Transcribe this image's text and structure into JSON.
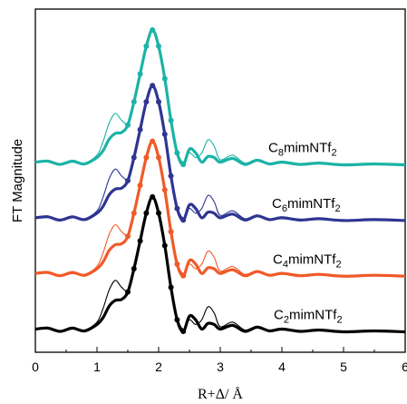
{
  "chart_data": {
    "type": "line",
    "xlabel": "R+Δ/ Å",
    "ylabel": "FT Magnitude",
    "xlim": [
      0,
      6
    ],
    "x_ticks": [
      "0",
      "1",
      "2",
      "3",
      "4",
      "5",
      "6"
    ],
    "y_ticks_labeled": false,
    "grid": false,
    "legend": "none",
    "curve_style": "experimental: thick dotted line; fit: thin solid line, same color",
    "series": [
      {
        "name": "C8mimNTf2",
        "label": {
          "c": "C",
          "n1": "8",
          "mid": "mimNTf",
          "n2": "2"
        },
        "color": "#1bb3a6",
        "offset": 3.6,
        "x": [
          0,
          0.2,
          0.4,
          0.6,
          0.8,
          1.0,
          1.1,
          1.2,
          1.3,
          1.4,
          1.5,
          1.6,
          1.7,
          1.8,
          1.9,
          2.0,
          2.1,
          2.2,
          2.3,
          2.4,
          2.5,
          2.6,
          2.7,
          2.8,
          2.9,
          3.0,
          3.2,
          3.4,
          3.6,
          3.8,
          4.0,
          4.3,
          4.6,
          5.0,
          5.5,
          6.0
        ],
        "y": [
          0.1,
          0.12,
          0.05,
          0.12,
          0.06,
          0.2,
          0.35,
          0.6,
          0.72,
          0.74,
          0.9,
          1.4,
          2.0,
          2.6,
          2.95,
          2.6,
          1.9,
          1.0,
          0.3,
          0.05,
          0.38,
          0.3,
          0.1,
          0.22,
          0.2,
          0.1,
          0.18,
          0.05,
          0.14,
          0.06,
          0.1,
          0.05,
          0.08,
          0.04,
          0.06,
          0.04
        ]
      },
      {
        "name": "C6mimNTf2",
        "label": {
          "c": "C",
          "n1": "6",
          "mid": "mimNTf",
          "n2": "2"
        },
        "color": "#2e3591",
        "offset": 2.4,
        "x": [
          0,
          0.2,
          0.4,
          0.6,
          0.8,
          1.0,
          1.1,
          1.2,
          1.3,
          1.4,
          1.5,
          1.6,
          1.7,
          1.8,
          1.9,
          2.0,
          2.1,
          2.2,
          2.3,
          2.4,
          2.5,
          2.6,
          2.7,
          2.8,
          2.9,
          3.0,
          3.2,
          3.4,
          3.6,
          3.8,
          4.0,
          4.3,
          4.6,
          5.0,
          5.5,
          6.0
        ],
        "y": [
          0.1,
          0.12,
          0.05,
          0.12,
          0.06,
          0.2,
          0.35,
          0.6,
          0.72,
          0.74,
          0.9,
          1.4,
          2.0,
          2.6,
          2.95,
          2.6,
          1.9,
          1.0,
          0.3,
          0.05,
          0.38,
          0.3,
          0.1,
          0.22,
          0.2,
          0.1,
          0.18,
          0.05,
          0.14,
          0.06,
          0.1,
          0.05,
          0.08,
          0.04,
          0.06,
          0.04
        ]
      },
      {
        "name": "C4mimNTf2",
        "label": {
          "c": "C",
          "n1": "4",
          "mid": "mimNTf",
          "n2": "2"
        },
        "color": "#f05a28",
        "offset": 1.2,
        "x": [
          0,
          0.2,
          0.4,
          0.6,
          0.8,
          1.0,
          1.1,
          1.2,
          1.3,
          1.4,
          1.5,
          1.6,
          1.7,
          1.8,
          1.9,
          2.0,
          2.1,
          2.2,
          2.3,
          2.4,
          2.5,
          2.6,
          2.7,
          2.8,
          2.9,
          3.0,
          3.2,
          3.4,
          3.6,
          3.8,
          4.0,
          4.3,
          4.6,
          5.0,
          5.5,
          6.0
        ],
        "y": [
          0.1,
          0.12,
          0.05,
          0.12,
          0.06,
          0.2,
          0.35,
          0.6,
          0.72,
          0.74,
          0.9,
          1.4,
          2.0,
          2.6,
          2.95,
          2.6,
          1.9,
          1.0,
          0.3,
          0.05,
          0.38,
          0.3,
          0.1,
          0.22,
          0.2,
          0.1,
          0.18,
          0.05,
          0.14,
          0.06,
          0.1,
          0.05,
          0.08,
          0.04,
          0.06,
          0.04
        ]
      },
      {
        "name": "C2mimNTf2",
        "label": {
          "c": "C",
          "n1": "2",
          "mid": "mimNTf",
          "n2": "2"
        },
        "color": "#000000",
        "offset": 0.0,
        "x": [
          0,
          0.2,
          0.4,
          0.6,
          0.8,
          1.0,
          1.1,
          1.2,
          1.3,
          1.4,
          1.5,
          1.6,
          1.7,
          1.8,
          1.9,
          2.0,
          2.1,
          2.2,
          2.3,
          2.4,
          2.5,
          2.6,
          2.7,
          2.8,
          2.9,
          3.0,
          3.2,
          3.4,
          3.6,
          3.8,
          4.0,
          4.3,
          4.6,
          5.0,
          5.5,
          6.0
        ],
        "y": [
          0.1,
          0.12,
          0.05,
          0.12,
          0.06,
          0.2,
          0.35,
          0.6,
          0.72,
          0.74,
          0.9,
          1.4,
          2.0,
          2.6,
          2.95,
          2.6,
          1.9,
          1.0,
          0.3,
          0.05,
          0.38,
          0.3,
          0.1,
          0.22,
          0.2,
          0.1,
          0.18,
          0.05,
          0.14,
          0.06,
          0.1,
          0.05,
          0.08,
          0.04,
          0.06,
          0.04
        ]
      }
    ],
    "fits": [
      {
        "series": "C8mimNTf2",
        "x": [
          0,
          0.2,
          0.4,
          0.6,
          0.8,
          1.0,
          1.1,
          1.2,
          1.3,
          1.4,
          1.5,
          1.6,
          1.7,
          1.8,
          1.9,
          2.0,
          2.1,
          2.2,
          2.3,
          2.4,
          2.5,
          2.6,
          2.7,
          2.8,
          2.9,
          3.0,
          3.2,
          3.4,
          3.6,
          3.8,
          4.0,
          4.3,
          4.6,
          5.0,
          5.5,
          6.0
        ],
        "y": [
          0.08,
          0.14,
          0.04,
          0.1,
          0.08,
          0.25,
          0.55,
          0.95,
          1.15,
          1.0,
          0.95,
          1.4,
          2.0,
          2.6,
          2.95,
          2.6,
          1.9,
          1.0,
          0.35,
          0.1,
          0.3,
          0.2,
          0.3,
          0.58,
          0.45,
          0.15,
          0.25,
          0.08,
          0.16,
          0.05,
          0.12,
          0.06,
          0.09,
          0.05,
          0.07,
          0.05
        ]
      },
      {
        "series": "C6mimNTf2",
        "x": [
          0,
          0.2,
          0.4,
          0.6,
          0.8,
          1.0,
          1.1,
          1.2,
          1.3,
          1.4,
          1.5,
          1.6,
          1.7,
          1.8,
          1.9,
          2.0,
          2.1,
          2.2,
          2.3,
          2.4,
          2.5,
          2.6,
          2.7,
          2.8,
          2.9,
          3.0,
          3.2,
          3.4,
          3.6,
          3.8,
          4.0,
          4.3,
          4.6,
          5.0,
          5.5,
          6.0
        ],
        "y": [
          0.08,
          0.14,
          0.04,
          0.1,
          0.08,
          0.25,
          0.55,
          0.95,
          1.15,
          1.0,
          0.95,
          1.4,
          2.0,
          2.6,
          2.95,
          2.6,
          1.9,
          1.0,
          0.35,
          0.1,
          0.3,
          0.2,
          0.3,
          0.58,
          0.45,
          0.15,
          0.25,
          0.08,
          0.16,
          0.05,
          0.12,
          0.06,
          0.09,
          0.05,
          0.07,
          0.05
        ]
      },
      {
        "series": "C4mimNTf2",
        "x": [
          0,
          0.2,
          0.4,
          0.6,
          0.8,
          1.0,
          1.1,
          1.2,
          1.3,
          1.4,
          1.5,
          1.6,
          1.7,
          1.8,
          1.9,
          2.0,
          2.1,
          2.2,
          2.3,
          2.4,
          2.5,
          2.6,
          2.7,
          2.8,
          2.9,
          3.0,
          3.2,
          3.4,
          3.6,
          3.8,
          4.0,
          4.3,
          4.6,
          5.0,
          5.5,
          6.0
        ],
        "y": [
          0.08,
          0.14,
          0.04,
          0.1,
          0.08,
          0.25,
          0.55,
          0.95,
          1.15,
          1.0,
          0.95,
          1.4,
          2.0,
          2.6,
          2.95,
          2.6,
          1.9,
          1.0,
          0.35,
          0.1,
          0.3,
          0.2,
          0.3,
          0.58,
          0.45,
          0.15,
          0.25,
          0.08,
          0.16,
          0.05,
          0.12,
          0.06,
          0.09,
          0.05,
          0.07,
          0.05
        ]
      },
      {
        "series": "C2mimNTf2",
        "x": [
          0,
          0.2,
          0.4,
          0.6,
          0.8,
          1.0,
          1.1,
          1.2,
          1.3,
          1.4,
          1.5,
          1.6,
          1.7,
          1.8,
          1.9,
          2.0,
          2.1,
          2.2,
          2.3,
          2.4,
          2.5,
          2.6,
          2.7,
          2.8,
          2.9,
          3.0,
          3.2,
          3.4,
          3.6,
          3.8,
          4.0,
          4.3,
          4.6,
          5.0,
          5.5,
          6.0
        ],
        "y": [
          0.08,
          0.14,
          0.04,
          0.1,
          0.08,
          0.25,
          0.55,
          0.95,
          1.15,
          1.0,
          0.95,
          1.4,
          2.0,
          2.6,
          2.95,
          2.6,
          1.9,
          1.0,
          0.35,
          0.1,
          0.3,
          0.2,
          0.3,
          0.58,
          0.45,
          0.15,
          0.25,
          0.08,
          0.16,
          0.05,
          0.12,
          0.06,
          0.09,
          0.05,
          0.07,
          0.05
        ]
      }
    ]
  }
}
